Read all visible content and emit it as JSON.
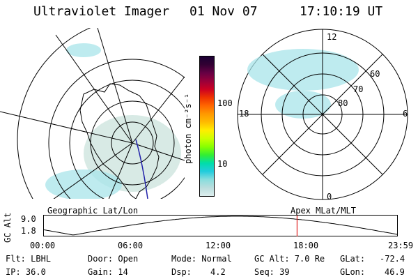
{
  "header": {
    "instrument": "Ultraviolet Imager",
    "date": "01 Nov 07",
    "time": "17:10:19 UT"
  },
  "colorbar": {
    "unit_label": "photon cm⁻²s⁻¹",
    "tick_100": "100",
    "tick_10": "10",
    "colors": [
      "#1a0033",
      "#330033",
      "#660044",
      "#99003a",
      "#cc0022",
      "#ee3300",
      "#ff6600",
      "#ff9900",
      "#ffbb00",
      "#ffee00",
      "#ccff00",
      "#88ff00",
      "#33ee33",
      "#00ddaa",
      "#22ccdd",
      "#88dddd",
      "#bbdddd",
      "#ddeeee"
    ]
  },
  "left_panel": {
    "caption": "Geographic Lat/Lon"
  },
  "right_panel": {
    "caption": "Apex MLat/MLT",
    "mlt_12": "12",
    "mlt_18": "18",
    "mlt_6": "6",
    "mlt_0": "0",
    "lat_60": "60",
    "lat_70": "70",
    "lat_80": "80"
  },
  "timeline": {
    "ylabel": "GC Alt",
    "y_top": "9.0",
    "y_bottom": "1.8",
    "x_ticks": [
      "00:00",
      "06:00",
      "12:00",
      "18:00",
      "23:59"
    ],
    "current_time_hours": 17.17
  },
  "info": {
    "filter": "Flt: LBHL",
    "ip": "IP: 36.0",
    "door": "Door: Open",
    "gain": "Gain: 14",
    "mode": "Mode: Normal",
    "dsp_label": "Dsp:",
    "dsp_value": "4.2",
    "gc_alt": "GC Alt: 7.0 Re",
    "seq": "Seq: 39",
    "glat_label": "GLat:",
    "glat_value": "-72.4",
    "glon_label": "GLon:",
    "glon_value": "46.9"
  },
  "colors": {
    "aurora": "#a8e4ea",
    "haze": "#d4e8e2",
    "marker": "#e02020",
    "track": "#2222aa"
  }
}
